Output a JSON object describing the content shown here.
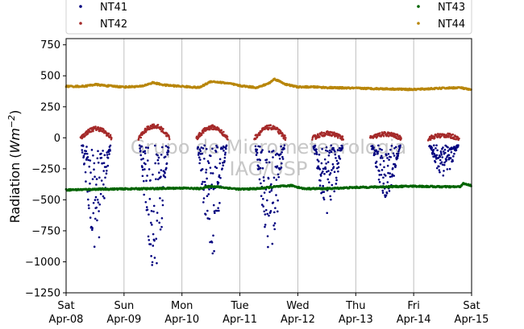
{
  "chart_data": {
    "type": "scatter",
    "title": "",
    "ylabel": "Radiation",
    "ylabel_unit_base": "Wm",
    "ylabel_unit_exp": "−2",
    "ylim": [
      -1250,
      800
    ],
    "yticks": [
      -1250,
      -1000,
      -750,
      -500,
      -250,
      0,
      250,
      500,
      750
    ],
    "ytick_labels": [
      "−1250",
      "−1000",
      "−750",
      "−500",
      "−250",
      "0",
      "250",
      "500",
      "750"
    ],
    "xlim": [
      0,
      7
    ],
    "xticks": [
      {
        "x": 0,
        "day": "Sat",
        "date": "Apr-08"
      },
      {
        "x": 1,
        "day": "Sun",
        "date": "Apr-09"
      },
      {
        "x": 2,
        "day": "Mon",
        "date": "Apr-10"
      },
      {
        "x": 3,
        "day": "Tue",
        "date": "Apr-11"
      },
      {
        "x": 4,
        "day": "Wed",
        "date": "Apr-12"
      },
      {
        "x": 5,
        "day": "Thu",
        "date": "Apr-13"
      },
      {
        "x": 6,
        "day": "Fri",
        "date": "Apr-14"
      },
      {
        "x": 7,
        "day": "Sat",
        "date": "Apr-15"
      }
    ],
    "grid": "vertical",
    "legend_position": "top",
    "watermark": [
      "Grupo de Micrometeorologia",
      "IAG/USP"
    ],
    "series": [
      {
        "name": "NT41",
        "color": "#00007f",
        "kind": "daytime-negative",
        "days": [
          {
            "start": 0.25,
            "end": 0.79,
            "min": -900
          },
          {
            "start": 1.25,
            "end": 1.79,
            "min": -1130
          },
          {
            "start": 2.25,
            "end": 2.79,
            "min": -980
          },
          {
            "start": 3.25,
            "end": 3.79,
            "min": -930
          },
          {
            "start": 4.25,
            "end": 4.79,
            "min": -630
          },
          {
            "start": 5.25,
            "end": 5.79,
            "min": -500
          },
          {
            "start": 6.25,
            "end": 6.79,
            "min": -330
          }
        ]
      },
      {
        "name": "NT42",
        "color": "#a52a2a",
        "kind": "daytime-positive",
        "days": [
          {
            "start": 0.25,
            "end": 0.79,
            "peak": 80
          },
          {
            "start": 1.25,
            "end": 1.79,
            "peak": 100
          },
          {
            "start": 2.25,
            "end": 2.79,
            "peak": 90
          },
          {
            "start": 3.25,
            "end": 3.79,
            "peak": 90
          },
          {
            "start": 4.25,
            "end": 4.79,
            "peak": 40
          },
          {
            "start": 5.25,
            "end": 5.79,
            "peak": 35
          },
          {
            "start": 6.25,
            "end": 6.79,
            "peak": 25
          }
        ]
      },
      {
        "name": "NT43",
        "color": "#006400",
        "kind": "continuous",
        "points": [
          [
            0,
            -420
          ],
          [
            0.5,
            -415
          ],
          [
            1,
            -412
          ],
          [
            1.5,
            -410
          ],
          [
            2,
            -405
          ],
          [
            2.3,
            -410
          ],
          [
            2.5,
            -390
          ],
          [
            2.7,
            -400
          ],
          [
            3,
            -415
          ],
          [
            3.3,
            -410
          ],
          [
            3.6,
            -395
          ],
          [
            3.9,
            -385
          ],
          [
            4.1,
            -410
          ],
          [
            4.5,
            -410
          ],
          [
            5,
            -400
          ],
          [
            5.5,
            -395
          ],
          [
            6,
            -390
          ],
          [
            6.5,
            -395
          ],
          [
            6.8,
            -395
          ],
          [
            6.85,
            -370
          ],
          [
            7,
            -385
          ]
        ]
      },
      {
        "name": "NT44",
        "color": "#b8860b",
        "kind": "continuous",
        "points": [
          [
            0,
            415
          ],
          [
            0.3,
            415
          ],
          [
            0.5,
            430
          ],
          [
            0.7,
            420
          ],
          [
            1,
            410
          ],
          [
            1.3,
            415
          ],
          [
            1.5,
            445
          ],
          [
            1.7,
            425
          ],
          [
            2,
            415
          ],
          [
            2.3,
            405
          ],
          [
            2.5,
            455
          ],
          [
            2.8,
            440
          ],
          [
            3,
            420
          ],
          [
            3.3,
            405
          ],
          [
            3.5,
            440
          ],
          [
            3.6,
            475
          ],
          [
            3.8,
            430
          ],
          [
            4,
            410
          ],
          [
            4.3,
            410
          ],
          [
            4.5,
            405
          ],
          [
            5,
            400
          ],
          [
            5.5,
            395
          ],
          [
            6,
            390
          ],
          [
            6.5,
            400
          ],
          [
            6.8,
            405
          ],
          [
            7,
            385
          ]
        ]
      }
    ]
  }
}
